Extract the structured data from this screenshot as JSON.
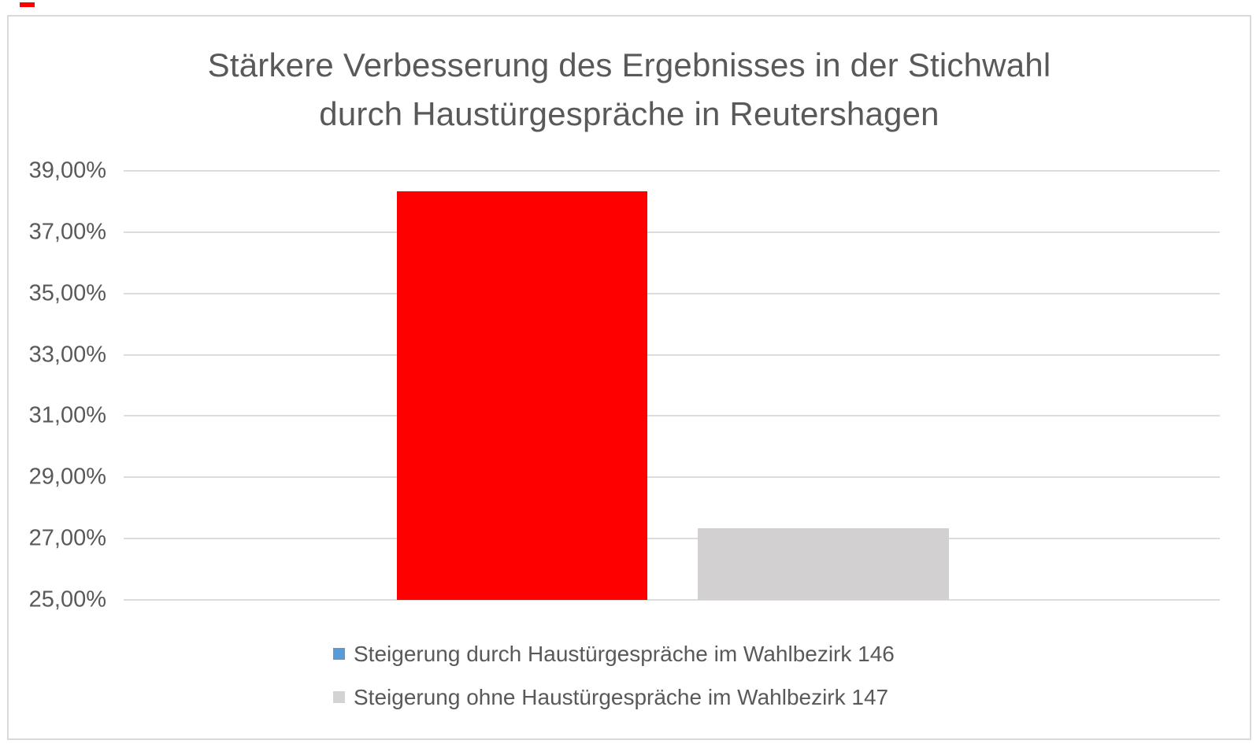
{
  "page": {
    "background_color": "#FFFFFF",
    "frame_border_color": "#D9D9D9",
    "top_left_red_dash_color": "#FF0000"
  },
  "chart_data": {
    "type": "bar",
    "title": "Stärkere Verbesserung des Ergebnisses in der Stichwahl durch Haustürgespräche in Reutershagen",
    "title_lines": [
      "Stärkere Verbesserung des Ergebnisses in der Stichwahl",
      "durch Haustürgespräche in Reutershagen"
    ],
    "categories": [
      ""
    ],
    "series": [
      {
        "name": "Steigerung durch Haustürgespräche im Wahlbezirk 146",
        "values": [
          38.33
        ],
        "bar_color": "#FF0000",
        "legend_swatch_color": "#5B9BD5"
      },
      {
        "name": "Steigerung ohne Haustürgespräche im Wahlbezirk 147",
        "values": [
          27.33
        ],
        "bar_color": "#D2D0D0",
        "legend_swatch_color": "#D4D2D2"
      }
    ],
    "xlabel": "",
    "ylabel": "",
    "ylim": [
      25,
      39
    ],
    "ytick_interval": 2,
    "yticklabels": [
      "39,00%",
      "37,00%",
      "35,00%",
      "33,00%",
      "31,00%",
      "29,00%",
      "27,00%",
      "25,00%"
    ],
    "ytick_format": "percent, comma decimal, 2 dp",
    "grid": true,
    "gridline_color": "#DCDCDC",
    "axis_text_color": "#595959",
    "title_text_color": "#595959",
    "legend_position": "bottom-left-aligned-rows"
  }
}
